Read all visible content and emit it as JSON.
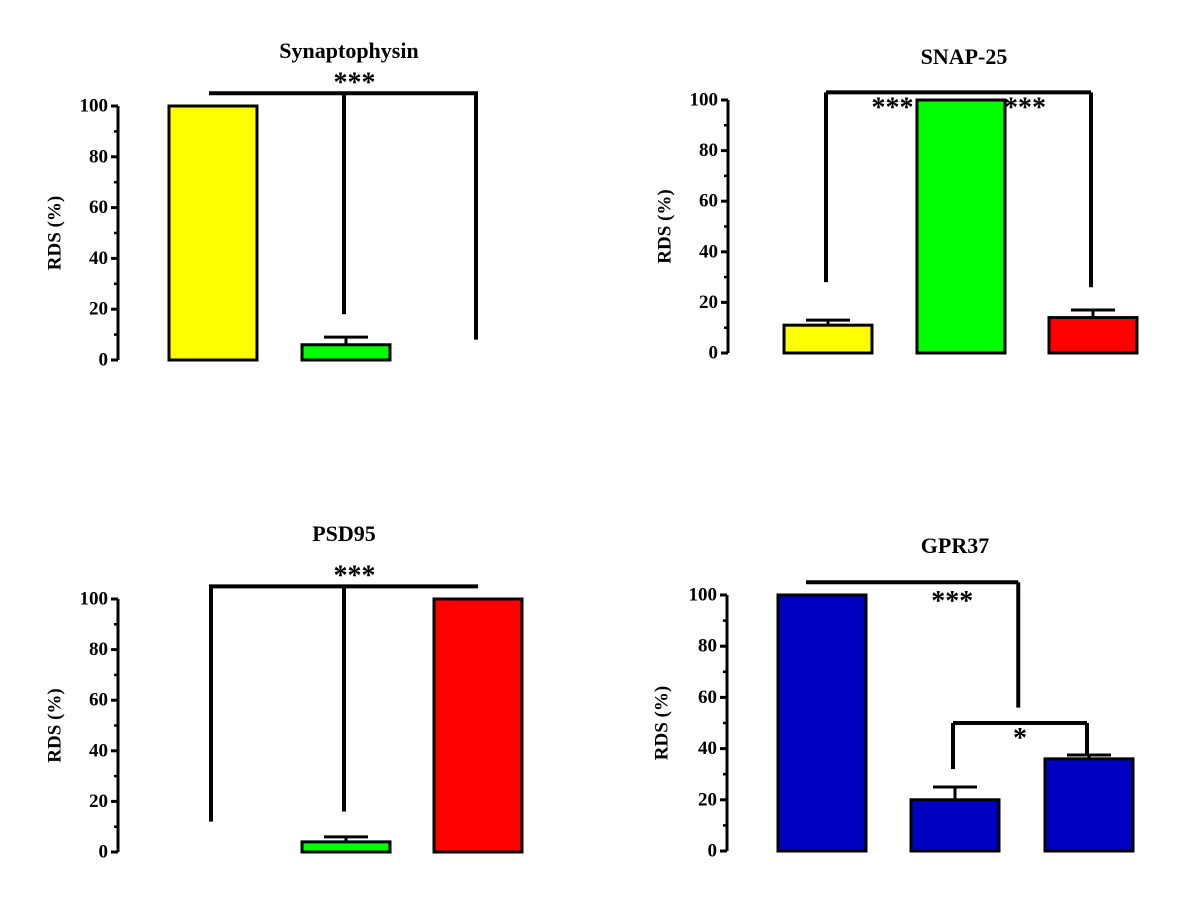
{
  "chart_data": [
    {
      "type": "bar",
      "title": "Synaptophysin",
      "ylabel": "RDS (%)",
      "xlabel": "",
      "ylim": [
        0,
        100
      ],
      "yticks": [
        0,
        20,
        40,
        60,
        80,
        100
      ],
      "bars": [
        {
          "value": 100,
          "error": 0,
          "color": "#ffff00"
        },
        {
          "value": 6,
          "error": 3,
          "color": "#00ff00"
        },
        {
          "value": 0,
          "error": 0,
          "color": "#ff0000"
        }
      ],
      "annotations": [
        {
          "label": "***",
          "type": "bracket",
          "from_bar": 0,
          "to_bar": 2,
          "y": 105,
          "drops": [
            18,
            8
          ],
          "drop_bars": [
            1,
            2
          ]
        }
      ]
    },
    {
      "type": "bar",
      "title": "SNAP-25",
      "ylabel": "RDS (%)",
      "xlabel": "",
      "ylim": [
        0,
        100
      ],
      "yticks": [
        0,
        20,
        40,
        60,
        80,
        100
      ],
      "bars": [
        {
          "value": 11,
          "error": 2,
          "color": "#ffff00"
        },
        {
          "value": 100,
          "error": 0,
          "color": "#00ff00"
        },
        {
          "value": 14,
          "error": 3,
          "color": "#ff0000"
        }
      ],
      "annotations": [
        {
          "label": "***",
          "type": "pair",
          "from_bar": 0,
          "to_bar": 1,
          "y": 103,
          "left_drop": 28
        },
        {
          "label": "***",
          "type": "pair",
          "from_bar": 1,
          "to_bar": 2,
          "y": 103,
          "right_drop": 26
        }
      ]
    },
    {
      "type": "bar",
      "title": "PSD95",
      "ylabel": "RDS (%)",
      "xlabel": "",
      "ylim": [
        0,
        100
      ],
      "yticks": [
        0,
        20,
        40,
        60,
        80,
        100
      ],
      "bars": [
        {
          "value": 0,
          "error": 0,
          "color": "#ffff00"
        },
        {
          "value": 4,
          "error": 2,
          "color": "#00ff00"
        },
        {
          "value": 100,
          "error": 0,
          "color": "#ff0000"
        }
      ],
      "annotations": [
        {
          "label": "***",
          "type": "bracket",
          "from_bar": 0,
          "to_bar": 2,
          "y": 105,
          "drops": [
            12,
            16
          ],
          "drop_bars": [
            0,
            1
          ]
        }
      ]
    },
    {
      "type": "bar",
      "title": "GPR37",
      "ylabel": "RDS (%)",
      "xlabel": "",
      "ylim": [
        0,
        100
      ],
      "yticks": [
        0,
        20,
        40,
        60,
        80,
        100
      ],
      "bars": [
        {
          "value": 100,
          "error": 0,
          "color": "#0000c0"
        },
        {
          "value": 20,
          "error": 5,
          "color": "#0000c0"
        },
        {
          "value": 36,
          "error": 1.5,
          "color": "#0000c0"
        }
      ],
      "annotations": [
        {
          "label": "***",
          "type": "step",
          "from_bar": 0,
          "y": 105,
          "mid_x_fraction": 0.75,
          "to_y": 56
        },
        {
          "label": "*",
          "type": "pair",
          "from_bar": 1,
          "to_bar": 2,
          "y": 50,
          "left_drop": 32,
          "right_drop": 38
        }
      ]
    }
  ]
}
